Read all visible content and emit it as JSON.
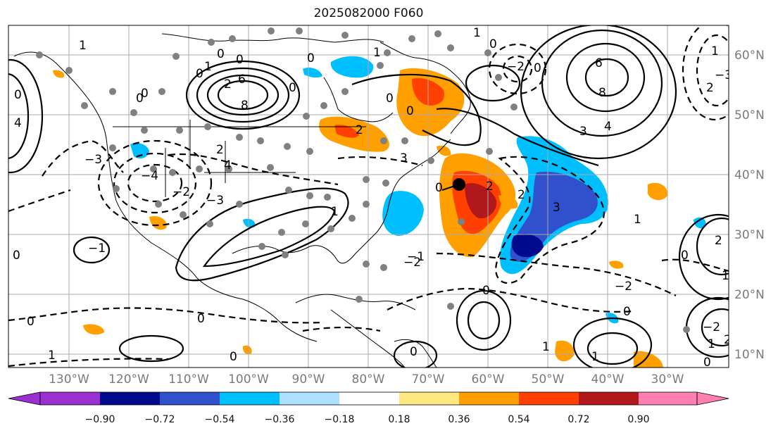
{
  "title": "2025082000 F060",
  "lon_labels": [
    "130°W",
    "120°W",
    "110°W",
    "100°W",
    "90°W",
    "80°W",
    "70°W",
    "60°W",
    "50°W",
    "40°W",
    "30°W"
  ],
  "lat_labels": [
    "60°N",
    "50°N",
    "40°N",
    "30°N",
    "20°N",
    "10°N"
  ],
  "colorbar": {
    "ticks": [
      "−0.90",
      "−0.72",
      "−0.54",
      "−0.36",
      "−0.18",
      "0.18",
      "0.36",
      "0.54",
      "0.72",
      "0.90"
    ],
    "colors": [
      "#9b30d0",
      "#000a8c",
      "#3050cc",
      "#00bfff",
      "#aee0ff",
      "#ffffff",
      "#ffe880",
      "#ffa000",
      "#ff4000",
      "#b0181c",
      "#ff80b0"
    ]
  },
  "contour_labels": [
    "1",
    "0",
    "0",
    "0",
    "1",
    "−2",
    "0",
    "0",
    "1",
    "0",
    "0",
    "0",
    "4",
    "1",
    "2",
    "0",
    "6",
    "8",
    "−3",
    "−4",
    "2",
    "4",
    "−2",
    "−3",
    "6",
    "8",
    "3",
    "4",
    "3",
    "2",
    "1",
    "1",
    "2",
    "−3",
    "0",
    "2",
    "3",
    "−2",
    "1",
    "0",
    "−2",
    "0",
    "1",
    "0",
    "2",
    "0",
    "−1",
    "−2",
    "1",
    "1",
    "0",
    "1",
    "0",
    "0",
    "0",
    "0",
    "−1",
    "0",
    "0",
    "0",
    "2",
    "1",
    "2"
  ],
  "marker": "storm-center"
}
